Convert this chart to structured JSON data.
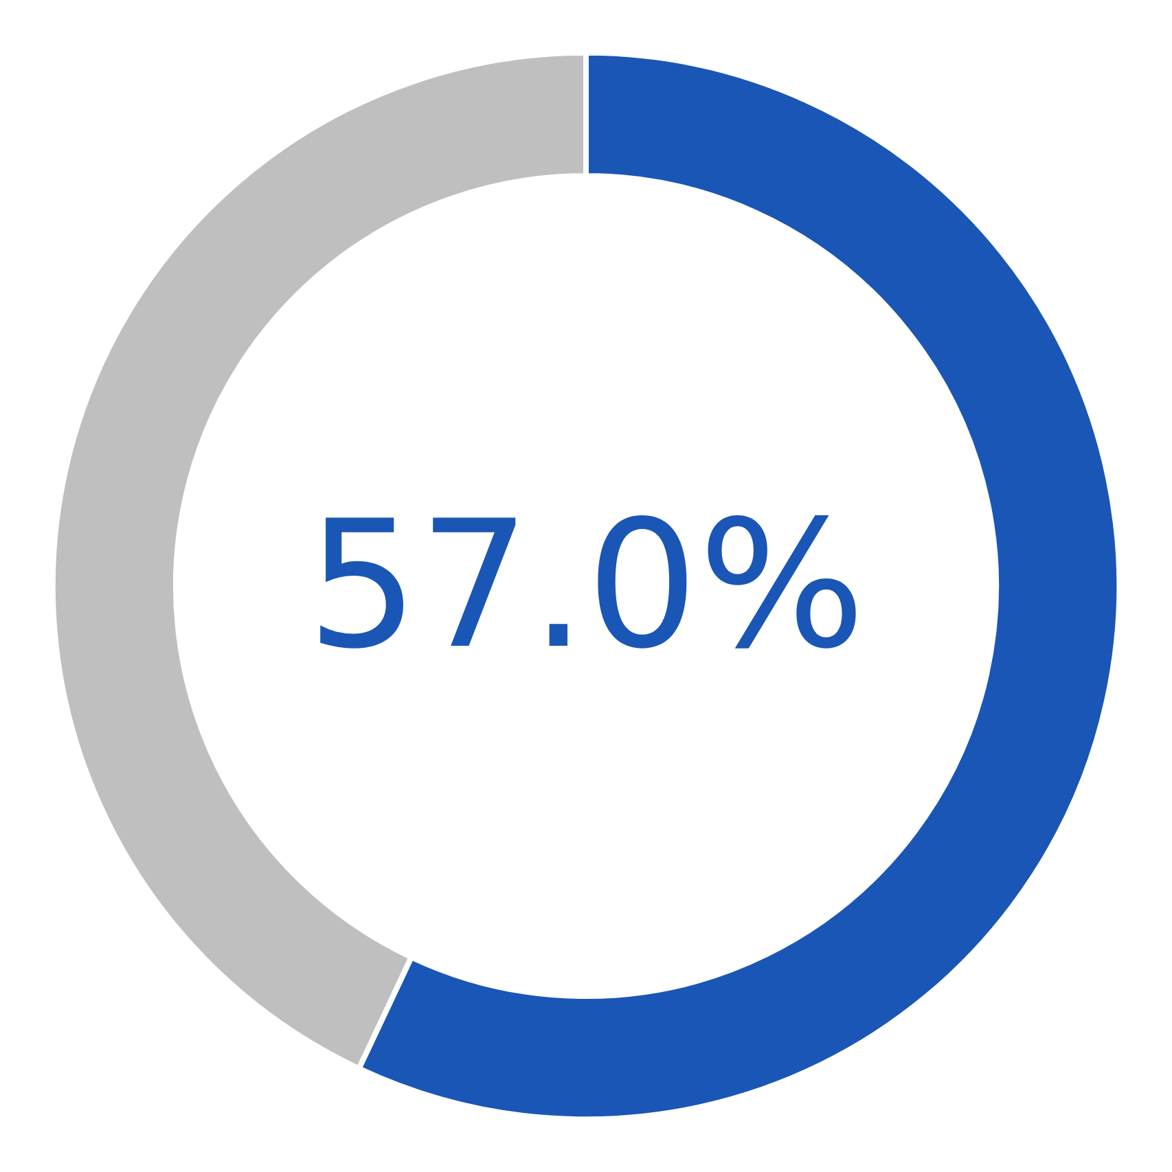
{
  "chart_data": {
    "type": "donut",
    "categories": [
      null,
      null
    ],
    "values": [
      57,
      43
    ],
    "colors": [
      "#1a56b5",
      "#bfbfbf"
    ],
    "annotations": [
      "57.0%"
    ]
  }
}
